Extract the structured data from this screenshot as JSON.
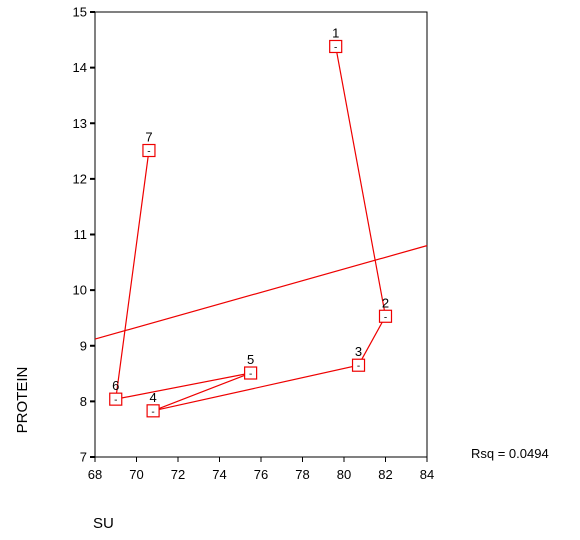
{
  "chart_data": {
    "type": "scatter",
    "xlabel": "SU",
    "ylabel": "PROTEIN",
    "xlim": [
      68,
      84
    ],
    "ylim": [
      7,
      15
    ],
    "x_ticks": [
      68,
      70,
      72,
      74,
      76,
      78,
      80,
      82,
      84
    ],
    "y_ticks": [
      7,
      8,
      9,
      10,
      11,
      12,
      13,
      14,
      15
    ],
    "points": [
      {
        "label": "1",
        "x": 79.6,
        "y": 14.38
      },
      {
        "label": "2",
        "x": 82.0,
        "y": 9.53
      },
      {
        "label": "3",
        "x": 80.7,
        "y": 8.65
      },
      {
        "label": "4",
        "x": 70.8,
        "y": 7.83
      },
      {
        "label": "5",
        "x": 75.5,
        "y": 8.51
      },
      {
        "label": "6",
        "x": 69.0,
        "y": 8.04
      },
      {
        "label": "7",
        "x": 70.6,
        "y": 12.51
      }
    ],
    "connect_in_order": true,
    "fit_line": {
      "x": [
        68,
        84
      ],
      "y": [
        9.12,
        10.8
      ]
    },
    "annotation": "Rsq = 0.0494",
    "marker_glyph": "-",
    "series_color": "#ee0000",
    "grid": false
  }
}
